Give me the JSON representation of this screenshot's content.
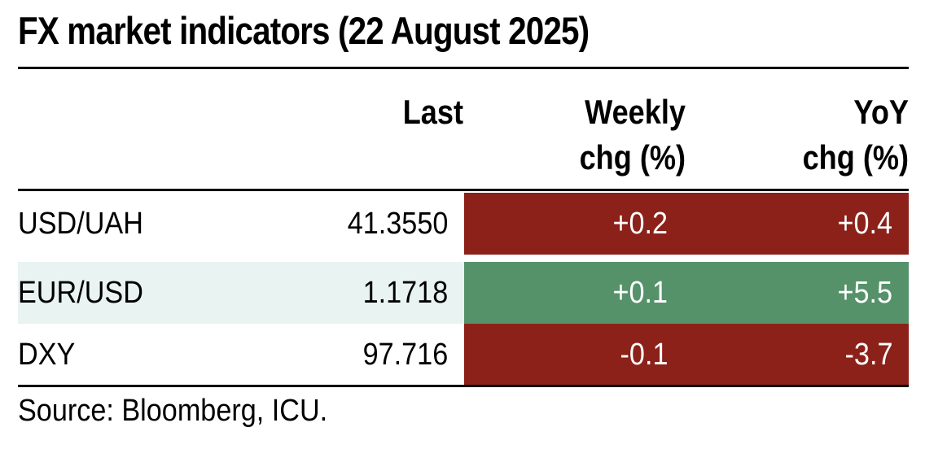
{
  "chart_data": {
    "type": "table",
    "title": "FX market indicators (22 August 2025)",
    "columns": [
      "Last",
      "Weekly chg (%)",
      "YoY chg (%)"
    ],
    "headers": {
      "last": "Last",
      "weekly": [
        "Weekly",
        "chg (%)"
      ],
      "yoy": [
        "YoY",
        "chg (%)"
      ]
    },
    "rows": [
      {
        "name": "USD/UAH",
        "last": "41.3550",
        "weekly": "+0.2",
        "yoy": "+0.4",
        "color": "#8b2119"
      },
      {
        "name": "EUR/USD",
        "last": "1.1718",
        "weekly": "+0.1",
        "yoy": "+5.5",
        "color": "#55926a"
      },
      {
        "name": "DXY",
        "last": "97.716",
        "weekly": "-0.1",
        "yoy": "-3.7",
        "color": "#8b2119"
      }
    ],
    "source": "Source: Bloomberg, ICU.",
    "colors": {
      "negative_cell": "#8b2119",
      "positive_cell": "#55926a",
      "row_band": "#e9f3f1"
    }
  }
}
